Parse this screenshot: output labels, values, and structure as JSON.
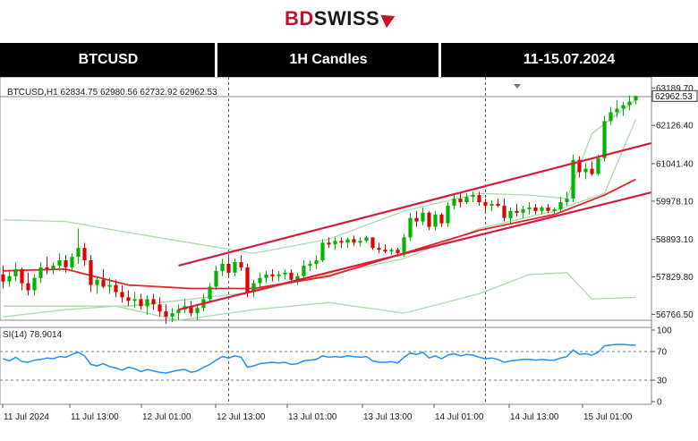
{
  "brand": {
    "bd": "BD",
    "swiss": "SWISS"
  },
  "header": {
    "symbol": "BTCUSD",
    "timeframe": "1H Candles",
    "date_range": "11-15.07.2024"
  },
  "chart_data": {
    "type": "candlestick",
    "symbol_line": "BTCUSD,H1  62834.75 62980.56 62732.92 62962.53",
    "price_axis": {
      "ticks": [
        "63189.70",
        "62126.40",
        "61041.40",
        "59978.10",
        "58893.10",
        "57829.80",
        "56766.50"
      ],
      "last_price": "62962.53",
      "range": [
        56600,
        63300
      ]
    },
    "time_axis": {
      "labels": [
        "11 Jul 2024",
        "11 Jul 13:00",
        "12 Jul 01:00",
        "12 Jul 13:00",
        "13 Jul 01:00",
        "13 Jul 13:00",
        "14 Jul 01:00",
        "14 Jul 13:00",
        "15 Jul 01:00"
      ]
    },
    "colors": {
      "up": "#00b400",
      "down": "#e00000",
      "channel": "#d81b3c",
      "bands": "#a8dca8",
      "ma": "#e8202a",
      "rsi": "#1e90ff"
    },
    "candles": [
      [
        57900,
        58150,
        57500,
        57700
      ],
      [
        57700,
        58000,
        57550,
        57850
      ],
      [
        57850,
        58250,
        57700,
        58050
      ],
      [
        58050,
        58100,
        57450,
        57650
      ],
      [
        57650,
        57950,
        57300,
        57450
      ],
      [
        57450,
        57900,
        57300,
        57800
      ],
      [
        57800,
        58250,
        57650,
        58100
      ],
      [
        58100,
        58400,
        57900,
        58050
      ],
      [
        58050,
        58250,
        57900,
        58150
      ],
      [
        58150,
        58500,
        58000,
        58300
      ],
      [
        58300,
        58450,
        57950,
        58100
      ],
      [
        58100,
        58500,
        58000,
        58400
      ],
      [
        58400,
        59200,
        58200,
        58650
      ],
      [
        58650,
        58800,
        58150,
        58300
      ],
      [
        58300,
        58450,
        57400,
        57600
      ],
      [
        57600,
        57850,
        57350,
        57750
      ],
      [
        57750,
        58050,
        57500,
        57550
      ],
      [
        57550,
        57800,
        57350,
        57600
      ],
      [
        57600,
        57750,
        57250,
        57400
      ],
      [
        57400,
        57600,
        57100,
        57250
      ],
      [
        57250,
        57450,
        57000,
        57150
      ],
      [
        57150,
        57400,
        56950,
        57200
      ],
      [
        57200,
        57350,
        56900,
        57000
      ],
      [
        57000,
        57300,
        56750,
        57200
      ],
      [
        57200,
        57350,
        56900,
        57050
      ],
      [
        57050,
        57250,
        56700,
        56850
      ],
      [
        56850,
        57050,
        56500,
        56700
      ],
      [
        56700,
        56950,
        56550,
        56800
      ],
      [
        56800,
        57050,
        56600,
        56900
      ],
      [
        56900,
        57200,
        56800,
        57000
      ],
      [
        57000,
        57150,
        56700,
        56800
      ],
      [
        56800,
        57050,
        56600,
        56950
      ],
      [
        56950,
        57350,
        56850,
        57200
      ],
      [
        57200,
        57650,
        57100,
        57550
      ],
      [
        57550,
        58150,
        57450,
        58000
      ],
      [
        58000,
        58350,
        57850,
        58200
      ],
      [
        58200,
        58400,
        57800,
        57950
      ],
      [
        57950,
        58350,
        57850,
        58250
      ],
      [
        58250,
        58450,
        58000,
        58100
      ],
      [
        58100,
        58200,
        57250,
        57400
      ],
      [
        57400,
        57750,
        57250,
        57650
      ],
      [
        57650,
        57950,
        57550,
        57800
      ],
      [
        57800,
        58000,
        57650,
        57900
      ],
      [
        57900,
        58050,
        57700,
        57850
      ],
      [
        57850,
        58000,
        57700,
        57900
      ],
      [
        57900,
        58050,
        57750,
        57950
      ],
      [
        57950,
        58050,
        57650,
        57750
      ],
      [
        57750,
        57950,
        57600,
        57850
      ],
      [
        57850,
        58300,
        57800,
        58150
      ],
      [
        58150,
        58300,
        58000,
        58200
      ],
      [
        58200,
        58450,
        58050,
        58300
      ],
      [
        58300,
        58900,
        58250,
        58800
      ],
      [
        58800,
        58950,
        58650,
        58750
      ],
      [
        58750,
        58950,
        58600,
        58850
      ],
      [
        58850,
        58950,
        58650,
        58800
      ],
      [
        58800,
        58950,
        58650,
        58900
      ],
      [
        58900,
        59000,
        58700,
        58800
      ],
      [
        58800,
        58950,
        58700,
        58850
      ],
      [
        58850,
        59000,
        58800,
        58950
      ],
      [
        58950,
        58950,
        58600,
        58650
      ],
      [
        58650,
        58800,
        58500,
        58600
      ],
      [
        58600,
        58750,
        58500,
        58550
      ],
      [
        58550,
        58650,
        58450,
        58600
      ],
      [
        58600,
        58650,
        58400,
        58500
      ],
      [
        58500,
        59050,
        58400,
        58950
      ],
      [
        58950,
        59650,
        58850,
        59500
      ],
      [
        59500,
        59700,
        59250,
        59400
      ],
      [
        59400,
        59800,
        59300,
        59650
      ],
      [
        59650,
        59700,
        59150,
        59250
      ],
      [
        59250,
        59700,
        59150,
        59600
      ],
      [
        59600,
        59650,
        59250,
        59350
      ],
      [
        59350,
        59950,
        59250,
        59850
      ],
      [
        59850,
        60200,
        59750,
        60050
      ],
      [
        60050,
        60250,
        59800,
        59950
      ],
      [
        59950,
        60200,
        59900,
        60100
      ],
      [
        60100,
        60250,
        59950,
        60150
      ],
      [
        60150,
        60250,
        59850,
        59950
      ],
      [
        59950,
        60050,
        59700,
        59850
      ],
      [
        59850,
        60000,
        59700,
        59900
      ],
      [
        59900,
        60050,
        59800,
        59850
      ],
      [
        59850,
        60050,
        59400,
        59500
      ],
      [
        59500,
        59800,
        59350,
        59700
      ],
      [
        59700,
        59900,
        59550,
        59650
      ],
      [
        59650,
        59850,
        59500,
        59750
      ],
      [
        59750,
        59950,
        59600,
        59800
      ],
      [
        59800,
        59900,
        59600,
        59700
      ],
      [
        59700,
        59850,
        59600,
        59800
      ],
      [
        59800,
        59900,
        59650,
        59700
      ],
      [
        59700,
        59800,
        59600,
        59750
      ],
      [
        59750,
        60100,
        59700,
        59950
      ],
      [
        59950,
        60250,
        59850,
        60050
      ],
      [
        60050,
        61300,
        59950,
        61150
      ],
      [
        61150,
        61250,
        60650,
        60800
      ],
      [
        60800,
        61050,
        60600,
        60900
      ],
      [
        60900,
        61100,
        60700,
        60750
      ],
      [
        60750,
        61300,
        60700,
        61200
      ],
      [
        61200,
        62400,
        61100,
        62250
      ],
      [
        62250,
        62650,
        62150,
        62500
      ],
      [
        62500,
        62850,
        62350,
        62600
      ],
      [
        62600,
        62800,
        62400,
        62700
      ],
      [
        62700,
        62980,
        62550,
        62800
      ],
      [
        62834.75,
        62980.56,
        62732.92,
        62962.53
      ]
    ],
    "bands": {
      "upper": [
        [
          0,
          59450
        ],
        [
          10,
          59400
        ],
        [
          18,
          59150
        ],
        [
          28,
          58850
        ],
        [
          40,
          58500
        ],
        [
          52,
          58900
        ],
        [
          64,
          59700
        ],
        [
          76,
          60200
        ],
        [
          84,
          60150
        ],
        [
          90,
          60050
        ],
        [
          94,
          61900
        ],
        [
          101,
          62850
        ]
      ],
      "lower": [
        [
          0,
          56700
        ],
        [
          10,
          56900
        ],
        [
          18,
          57000
        ],
        [
          28,
          56600
        ],
        [
          40,
          56900
        ],
        [
          52,
          57100
        ],
        [
          64,
          56800
        ],
        [
          76,
          57350
        ],
        [
          84,
          57900
        ],
        [
          90,
          57950
        ],
        [
          94,
          57200
        ],
        [
          101,
          57250
        ]
      ]
    },
    "ma": [
      [
        0,
        58000
      ],
      [
        10,
        58050
      ],
      [
        20,
        57600
      ],
      [
        30,
        57500
      ],
      [
        40,
        57500
      ],
      [
        52,
        57850
      ],
      [
        64,
        58500
      ],
      [
        76,
        59150
      ],
      [
        88,
        59600
      ],
      [
        96,
        60150
      ],
      [
        101,
        60600
      ]
    ],
    "inner_band": [
      [
        0,
        57000
      ],
      [
        20,
        57000
      ],
      [
        40,
        57400
      ],
      [
        52,
        57900
      ],
      [
        64,
        58350
      ],
      [
        76,
        59200
      ],
      [
        88,
        59700
      ],
      [
        96,
        60200
      ],
      [
        101,
        62300
      ]
    ],
    "channel_lines": [
      {
        "from": [
          28,
          58150
        ],
        "to": [
          104,
          61650
        ]
      },
      {
        "from": [
          28,
          56900
        ],
        "to": [
          104,
          60250
        ]
      }
    ],
    "rsi": {
      "label": "SI(14) 78.9014",
      "ticks": [
        "100",
        "70",
        "30",
        "0"
      ],
      "levels": [
        70,
        30
      ],
      "range": [
        0,
        100
      ],
      "values": [
        60,
        57,
        62,
        56,
        55,
        58,
        59,
        61,
        60,
        63,
        62,
        66,
        69,
        64,
        52,
        50,
        53,
        49,
        47,
        44,
        48,
        46,
        42,
        45,
        43,
        41,
        40,
        42,
        44,
        45,
        41,
        43,
        48,
        52,
        58,
        63,
        61,
        64,
        62,
        48,
        50,
        53,
        54,
        55,
        54,
        55,
        52,
        53,
        57,
        58,
        59,
        64,
        62,
        63,
        62,
        64,
        63,
        62,
        63,
        57,
        55,
        55,
        56,
        54,
        62,
        68,
        66,
        69,
        61,
        64,
        60,
        65,
        67,
        64,
        66,
        65,
        62,
        60,
        61,
        59,
        55,
        57,
        58,
        59,
        59,
        58,
        59,
        58,
        58,
        61,
        63,
        72,
        66,
        67,
        65,
        69,
        78,
        79,
        80,
        80,
        79,
        79
      ]
    }
  }
}
